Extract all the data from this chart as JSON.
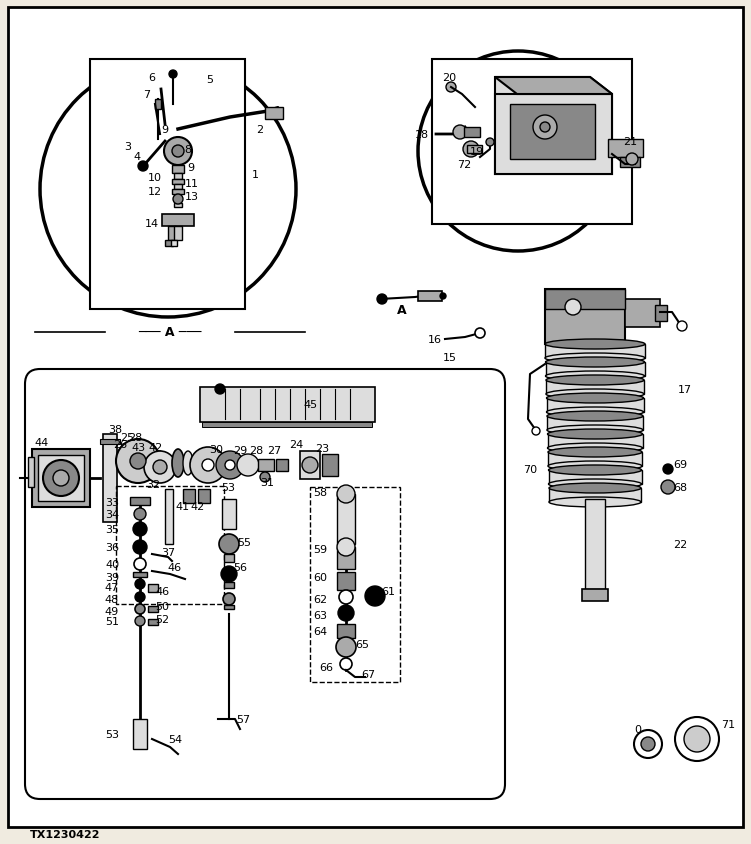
{
  "bg": "#f0ebe0",
  "white": "#ffffff",
  "black": "#000000",
  "gray1": "#cccccc",
  "gray2": "#aaaaaa",
  "gray3": "#888888",
  "gray4": "#dddddd",
  "watermark": "TX1230422",
  "fig_w": 7.51,
  "fig_h": 8.45,
  "dpi": 100
}
